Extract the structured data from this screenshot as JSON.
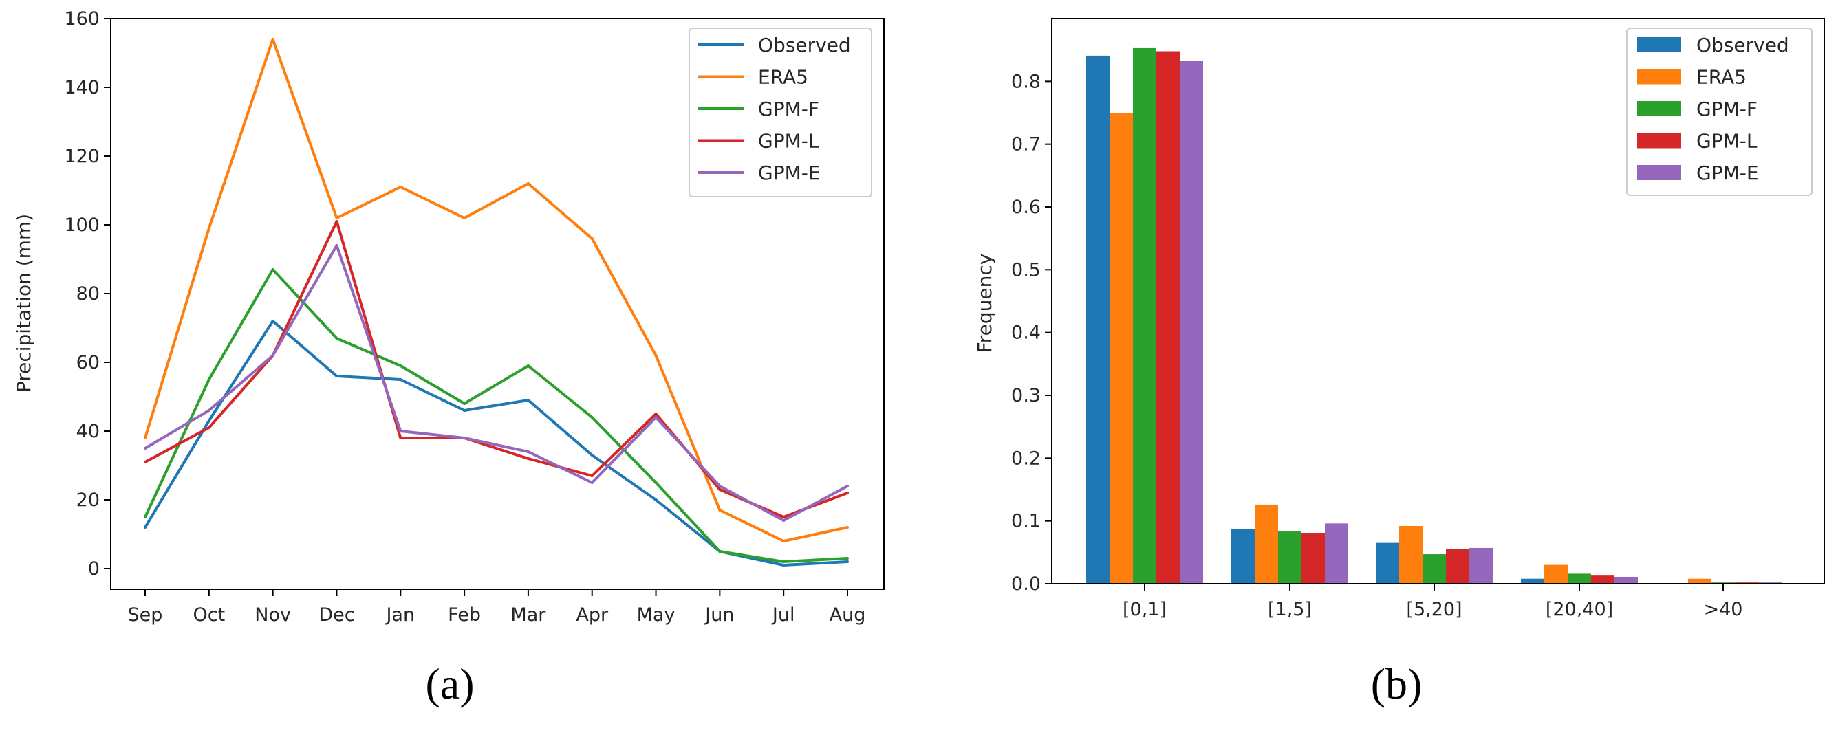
{
  "chart_data": [
    {
      "type": "line",
      "panel_label": "(a)",
      "title": "",
      "xlabel": "",
      "ylabel": "Precipitation (mm)",
      "categories": [
        "Sep",
        "Oct",
        "Nov",
        "Dec",
        "Jan",
        "Feb",
        "Mar",
        "Apr",
        "May",
        "Jun",
        "Jul",
        "Aug"
      ],
      "ylim": [
        -6,
        160
      ],
      "yticks": [
        0,
        20,
        40,
        60,
        80,
        100,
        120,
        140,
        160
      ],
      "grid": false,
      "legend_position": "top-right",
      "series": [
        {
          "name": "Observed",
          "color": "#1f77b4",
          "values": [
            12,
            43,
            72,
            56,
            55,
            46,
            49,
            33,
            20,
            5,
            1,
            2
          ]
        },
        {
          "name": "ERA5",
          "color": "#ff7f0e",
          "values": [
            38,
            99,
            154,
            102,
            111,
            102,
            112,
            96,
            62,
            17,
            8,
            12
          ]
        },
        {
          "name": "GPM-F",
          "color": "#2ca02c",
          "values": [
            15,
            55,
            87,
            67,
            59,
            48,
            59,
            44,
            25,
            5,
            2,
            3
          ]
        },
        {
          "name": "GPM-L",
          "color": "#d62728",
          "values": [
            31,
            41,
            62,
            101,
            38,
            38,
            32,
            27,
            45,
            23,
            15,
            22
          ]
        },
        {
          "name": "GPM-E",
          "color": "#9467bd",
          "values": [
            35,
            46,
            62,
            94,
            40,
            38,
            34,
            25,
            44,
            24,
            14,
            24
          ]
        }
      ]
    },
    {
      "type": "bar",
      "panel_label": "(b)",
      "title": "",
      "xlabel": "",
      "ylabel": "Frequency",
      "categories": [
        "[0,1]",
        "[1,5]",
        "[5,20]",
        "[20,40]",
        ">40"
      ],
      "ylim": [
        0,
        0.9
      ],
      "yticks": [
        "0.0",
        "0.1",
        "0.2",
        "0.3",
        "0.4",
        "0.5",
        "0.6",
        "0.7",
        "0.8"
      ],
      "grid": false,
      "legend_position": "top-right",
      "series": [
        {
          "name": "Observed",
          "color": "#1f77b4",
          "values": [
            0.841,
            0.087,
            0.065,
            0.008,
            0.001
          ]
        },
        {
          "name": "ERA5",
          "color": "#ff7f0e",
          "values": [
            0.749,
            0.126,
            0.092,
            0.03,
            0.008
          ]
        },
        {
          "name": "GPM-F",
          "color": "#2ca02c",
          "values": [
            0.853,
            0.084,
            0.047,
            0.016,
            0.002
          ]
        },
        {
          "name": "GPM-L",
          "color": "#d62728",
          "values": [
            0.848,
            0.081,
            0.055,
            0.013,
            0.002
          ]
        },
        {
          "name": "GPM-E",
          "color": "#9467bd",
          "values": [
            0.833,
            0.096,
            0.057,
            0.011,
            0.002
          ]
        }
      ]
    }
  ]
}
